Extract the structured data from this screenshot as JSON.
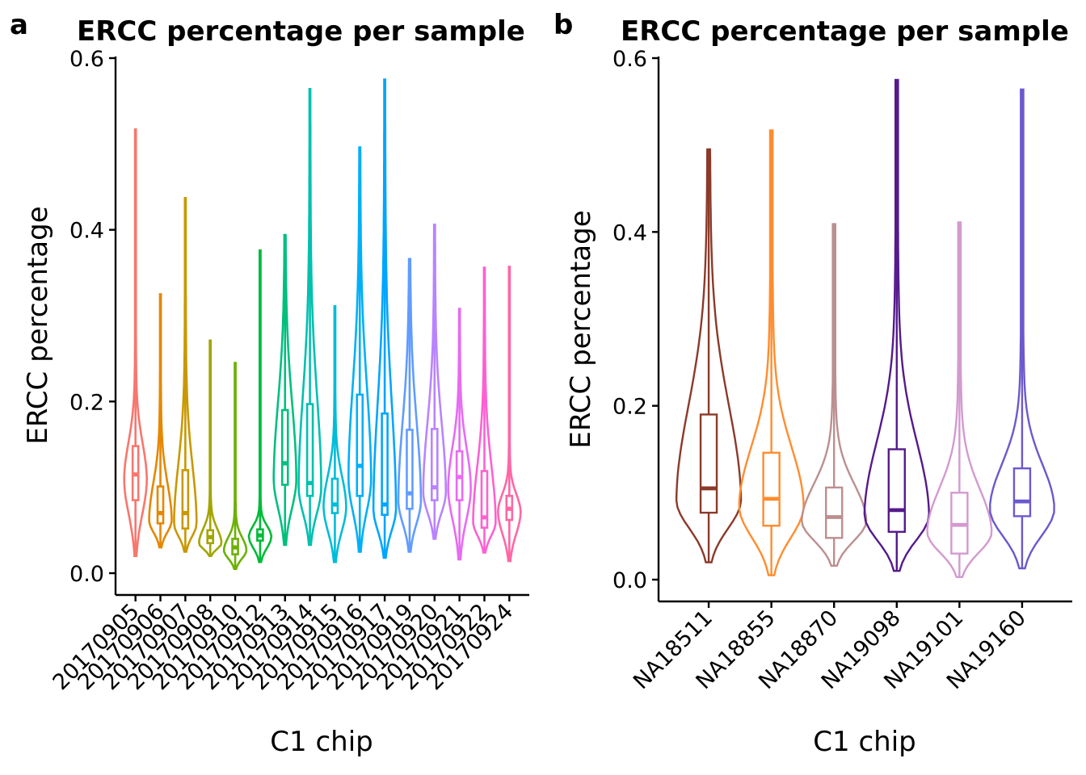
{
  "panels": [
    {
      "letter": "a",
      "title": "ERCC percentage per sample",
      "xlabel": "C1 chip",
      "ylabel": "ERCC percentage"
    },
    {
      "letter": "b",
      "title": "ERCC percentage per sample",
      "xlabel": "C1 chip",
      "ylabel": "ERCC percentage"
    }
  ],
  "chart_data": [
    {
      "type": "violin",
      "title": "ERCC percentage per sample",
      "xlabel": "C1 chip",
      "ylabel": "ERCC percentage",
      "ylim": [
        -0.03,
        0.6
      ],
      "yticks": [
        0.0,
        0.2,
        0.4,
        0.6
      ],
      "ytick_labels": [
        "0.0",
        "0.2",
        "0.4",
        "0.6"
      ],
      "grid": false,
      "legend": "none",
      "categories": [
        "20170905",
        "20170906",
        "20170907",
        "20170908",
        "20170910",
        "20170912",
        "20170913",
        "20170914",
        "20170915",
        "20170916",
        "20170917",
        "20170919",
        "20170920",
        "20170921",
        "20170922",
        "20170924"
      ],
      "colors": [
        "#F8766D",
        "#E58700",
        "#C99800",
        "#A3A500",
        "#6BB100",
        "#00BA38",
        "#00BF7D",
        "#00C0AF",
        "#00BCD8",
        "#00B0F6",
        "#00A5FF",
        "#619CFF",
        "#B983FF",
        "#E76BF3",
        "#FD61D1",
        "#FF67A4"
      ],
      "series": [
        {
          "category": "20170905",
          "min": 0.02,
          "q1": 0.085,
          "median": 0.115,
          "q3": 0.148,
          "max": 0.517,
          "mode": 0.11
        },
        {
          "category": "20170906",
          "min": 0.03,
          "q1": 0.058,
          "median": 0.07,
          "q3": 0.101,
          "max": 0.325,
          "mode": 0.062
        },
        {
          "category": "20170907",
          "min": 0.025,
          "q1": 0.052,
          "median": 0.07,
          "q3": 0.12,
          "max": 0.437,
          "mode": 0.058
        },
        {
          "category": "20170908",
          "min": 0.02,
          "q1": 0.035,
          "median": 0.042,
          "q3": 0.05,
          "max": 0.271,
          "mode": 0.035
        },
        {
          "category": "20170910",
          "min": 0.005,
          "q1": 0.022,
          "median": 0.03,
          "q3": 0.04,
          "max": 0.245,
          "mode": 0.027
        },
        {
          "category": "20170912",
          "min": 0.013,
          "q1": 0.038,
          "median": 0.044,
          "q3": 0.051,
          "max": 0.376,
          "mode": 0.043
        },
        {
          "category": "20170913",
          "min": 0.033,
          "q1": 0.103,
          "median": 0.128,
          "q3": 0.19,
          "max": 0.394,
          "mode": 0.11
        },
        {
          "category": "20170914",
          "min": 0.033,
          "q1": 0.09,
          "median": 0.105,
          "q3": 0.197,
          "max": 0.564,
          "mode": 0.1
        },
        {
          "category": "20170915",
          "min": 0.013,
          "q1": 0.07,
          "median": 0.08,
          "q3": 0.11,
          "max": 0.311,
          "mode": 0.078
        },
        {
          "category": "20170916",
          "min": 0.025,
          "q1": 0.09,
          "median": 0.125,
          "q3": 0.208,
          "max": 0.496,
          "mode": 0.11
        },
        {
          "category": "20170917",
          "min": 0.018,
          "q1": 0.068,
          "median": 0.08,
          "q3": 0.186,
          "max": 0.575,
          "mode": 0.075
        },
        {
          "category": "20170919",
          "min": 0.025,
          "q1": 0.075,
          "median": 0.093,
          "q3": 0.167,
          "max": 0.366,
          "mode": 0.085
        },
        {
          "category": "20170920",
          "min": 0.04,
          "q1": 0.085,
          "median": 0.1,
          "q3": 0.168,
          "max": 0.406,
          "mode": 0.095
        },
        {
          "category": "20170921",
          "min": 0.016,
          "q1": 0.085,
          "median": 0.112,
          "q3": 0.142,
          "max": 0.308,
          "mode": 0.1
        },
        {
          "category": "20170922",
          "min": 0.024,
          "q1": 0.053,
          "median": 0.065,
          "q3": 0.119,
          "max": 0.356,
          "mode": 0.06
        },
        {
          "category": "20170924",
          "min": 0.014,
          "q1": 0.062,
          "median": 0.075,
          "q3": 0.09,
          "max": 0.357,
          "mode": 0.072
        }
      ]
    },
    {
      "type": "violin",
      "title": "ERCC percentage per sample",
      "xlabel": "C1 chip",
      "ylabel": "ERCC percentage",
      "ylim": [
        -0.025,
        0.6
      ],
      "yticks": [
        0.0,
        0.2,
        0.4,
        0.6
      ],
      "ytick_labels": [
        "0.0",
        "0.2",
        "0.4",
        "0.6"
      ],
      "grid": false,
      "legend": "none",
      "categories": [
        "NA18511",
        "NA18855",
        "NA18870",
        "NA19098",
        "NA19101",
        "NA19160"
      ],
      "colors": [
        "#8B3A2A",
        "#FF8C2E",
        "#BC8F8F",
        "#551A8B",
        "#D39AD0",
        "#6A5ACD"
      ],
      "series": [
        {
          "category": "NA18511",
          "min": 0.02,
          "q1": 0.077,
          "median": 0.105,
          "q3": 0.19,
          "max": 0.495,
          "mode": 0.092
        },
        {
          "category": "NA18855",
          "min": 0.005,
          "q1": 0.062,
          "median": 0.093,
          "q3": 0.146,
          "max": 0.517,
          "mode": 0.085
        },
        {
          "category": "NA18870",
          "min": 0.016,
          "q1": 0.048,
          "median": 0.072,
          "q3": 0.106,
          "max": 0.409,
          "mode": 0.068
        },
        {
          "category": "NA19098",
          "min": 0.01,
          "q1": 0.055,
          "median": 0.08,
          "q3": 0.15,
          "max": 0.575,
          "mode": 0.075
        },
        {
          "category": "NA19101",
          "min": 0.003,
          "q1": 0.03,
          "median": 0.063,
          "q3": 0.1,
          "max": 0.411,
          "mode": 0.055
        },
        {
          "category": "NA19160",
          "min": 0.013,
          "q1": 0.073,
          "median": 0.09,
          "q3": 0.128,
          "max": 0.564,
          "mode": 0.082
        }
      ]
    }
  ]
}
